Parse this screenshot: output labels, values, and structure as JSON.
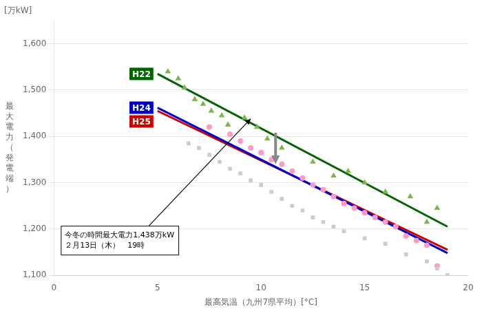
{
  "chart_data": {
    "type": "scatter",
    "xlabel": "最高気温（九州7県平均）[°C]",
    "ylabel": "最\n大\n電\n力\n（\n発\n電\n端\n）",
    "ylabel_top": "[万kW]",
    "xlim": [
      0,
      20
    ],
    "ylim": [
      1100,
      1650
    ],
    "xticks": [
      0,
      5,
      10,
      15,
      20
    ],
    "yticks": [
      {
        "value": 1100,
        "label": "1,100"
      },
      {
        "value": 1200,
        "label": "1,200"
      },
      {
        "value": 1300,
        "label": "1,300"
      },
      {
        "value": 1400,
        "label": "1,400"
      },
      {
        "value": 1500,
        "label": "1,500"
      },
      {
        "value": 1600,
        "label": "1,600"
      }
    ],
    "grid": "y",
    "series": [
      {
        "name": "H24",
        "marker": "square",
        "color": "#cccccc",
        "x": [
          6.5,
          7.0,
          7.5,
          8.0,
          8.5,
          9.0,
          9.5,
          10.0,
          10.5,
          11.0,
          11.5,
          12.0,
          12.5,
          13.0,
          13.5,
          14.0,
          15.0,
          16.0,
          17.0,
          18.0,
          18.5,
          19.0
        ],
        "values": [
          1385,
          1375,
          1360,
          1345,
          1330,
          1320,
          1305,
          1295,
          1280,
          1265,
          1250,
          1240,
          1225,
          1215,
          1205,
          1195,
          1180,
          1168,
          1145,
          1130,
          1115,
          1100
        ],
        "fit": {
          "x": [
            5.0,
            19.0
          ],
          "values": [
            1462,
            1148
          ],
          "color": "#0000cc",
          "line_style": "solid"
        }
      },
      {
        "name": "H25",
        "marker": "circle",
        "color": "#ff99cc",
        "x": [
          7.5,
          8.5,
          9.0,
          9.5,
          10.0,
          10.5,
          11.0,
          11.5,
          12.0,
          12.5,
          13.0,
          13.5,
          14.0,
          14.5,
          15.0,
          15.5,
          16.0,
          16.5,
          17.0,
          17.5,
          18.0,
          18.5
        ],
        "values": [
          1420,
          1405,
          1390,
          1375,
          1365,
          1350,
          1340,
          1325,
          1310,
          1295,
          1285,
          1270,
          1255,
          1245,
          1235,
          1225,
          1215,
          1205,
          1185,
          1175,
          1165,
          1120
        ],
        "fit": {
          "x": [
            5.0,
            19.0
          ],
          "values": [
            1455,
            1155
          ],
          "color": "#cc0000",
          "line_style": "solid"
        }
      },
      {
        "name": "H22",
        "marker": "triangle",
        "color": "#7ab648",
        "x": [
          5.5,
          6.0,
          6.3,
          6.8,
          7.2,
          7.6,
          8.1,
          8.4,
          9.2,
          9.8,
          10.3,
          11.0,
          12.5,
          13.5,
          14.2,
          15.0,
          16.0,
          17.2,
          18.0,
          18.5
        ],
        "values": [
          1540,
          1525,
          1505,
          1480,
          1470,
          1455,
          1445,
          1425,
          1440,
          1420,
          1395,
          1375,
          1345,
          1315,
          1325,
          1300,
          1280,
          1270,
          1215,
          1245
        ],
        "fit": {
          "x": [
            5.0,
            19.0
          ],
          "values": [
            1535,
            1205
          ],
          "color": "#006400",
          "line_style": "solid"
        }
      }
    ],
    "annotations": [
      {
        "text": "今冬の時間最大電力1,438万kW\n２月13日（木）　19時",
        "x": 9.5,
        "y": 1438
      }
    ],
    "arrows": [
      {
        "x": 10.7,
        "y_from": 1408,
        "y_to": 1340,
        "color": "#888888"
      }
    ]
  }
}
